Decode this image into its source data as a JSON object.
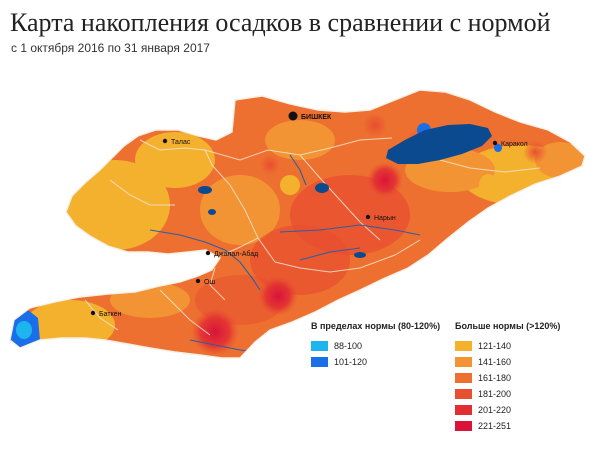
{
  "title": "Карта накопления осадков в сравнении с нормой",
  "subtitle": "с 1 октября 2016 по 31 января 2017",
  "cities": {
    "bishkek": "БИШКЕК",
    "talas": "Талас",
    "karakol": "Каракол",
    "naryn": "Нарын",
    "jalal_abad": "Джалал-Абад",
    "osh": "Ош",
    "batken": "Баткен"
  },
  "legend": {
    "normal": {
      "title": "В пределах нормы (80-120%)",
      "items": [
        {
          "label": "88-100",
          "color": "#1eb4ee"
        },
        {
          "label": "101-120",
          "color": "#1a6ee8"
        }
      ]
    },
    "above": {
      "title": "Больше нормы (>120%)",
      "items": [
        {
          "label": "121-140",
          "color": "#f4b12e"
        },
        {
          "label": "141-160",
          "color": "#f29434"
        },
        {
          "label": "161-180",
          "color": "#ed7030"
        },
        {
          "label": "181-200",
          "color": "#e84e30"
        },
        {
          "label": "201-220",
          "color": "#e22d33"
        },
        {
          "label": "221-251",
          "color": "#d9133a"
        }
      ]
    }
  },
  "colors": {
    "lake": "#0b4a8f",
    "river": "#2d5fa0",
    "border": "#f3e4d0"
  }
}
